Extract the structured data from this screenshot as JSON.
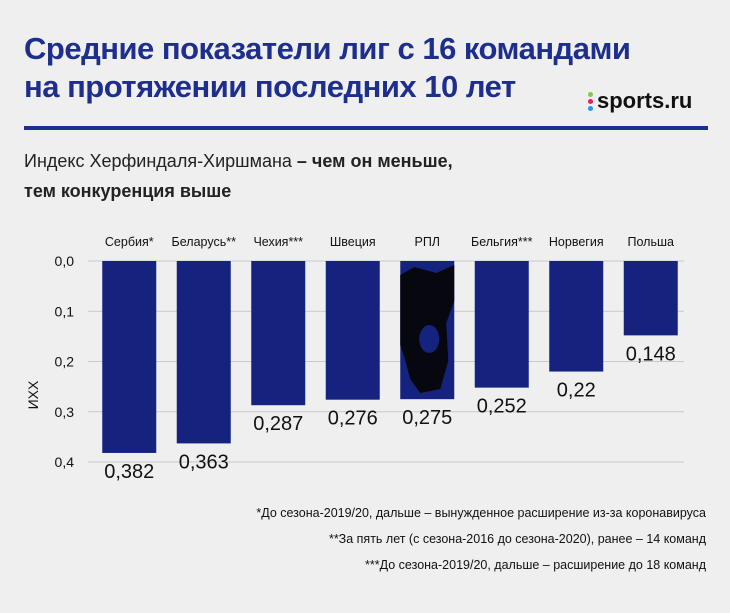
{
  "header": {
    "title_line1": "Средние показатели лиг с 16 командами",
    "title_line2": "на протяжении последних 10 лет",
    "brand": "sports.ru",
    "subtitle_regular": "Индекс Херфиндаля-Хиршмана",
    "subtitle_bold_1": " – чем он меньше,",
    "subtitle_bold_2": "тем конкуренция выше"
  },
  "colors": {
    "bar": "#15237e",
    "title": "#1e2e8c",
    "grid": "#c9c9c9",
    "brand_dots": [
      "#8bc34a",
      "#e91e63",
      "#2196f3",
      "#ff9800"
    ]
  },
  "chart_data": {
    "type": "bar",
    "orientation": "vertical-inverted",
    "categories": [
      "Сербия*",
      "Беларусь**",
      "Чехия***",
      "Швеция",
      "РПЛ",
      "Бельгия***",
      "Норвегия",
      "Польша"
    ],
    "values": [
      0.382,
      0.363,
      0.287,
      0.276,
      0.275,
      0.252,
      0.22,
      0.148
    ],
    "value_labels": [
      "0,382",
      "0,363",
      "0,287",
      "0,276",
      "0,275",
      "0,252",
      "0,22",
      "0,148"
    ],
    "ylabel": "ИХХ",
    "ylim": [
      0,
      0.4
    ],
    "yticks": [
      0,
      0.1,
      0.2,
      0.3,
      0.4
    ],
    "ytick_labels": [
      "0,0",
      "0,1",
      "0,2",
      "0,3",
      "0,4"
    ],
    "highlight": "РПЛ",
    "grid": true
  },
  "notes": [
    "*До сезона-2019/20, дальше – вынужденное расширение из-за коронавируса",
    "**За пять лет (с сезона-2016 до сезона-2020), ранее – 14 команд",
    "***До сезона-2019/20, дальше – расширение до 18 команд"
  ]
}
